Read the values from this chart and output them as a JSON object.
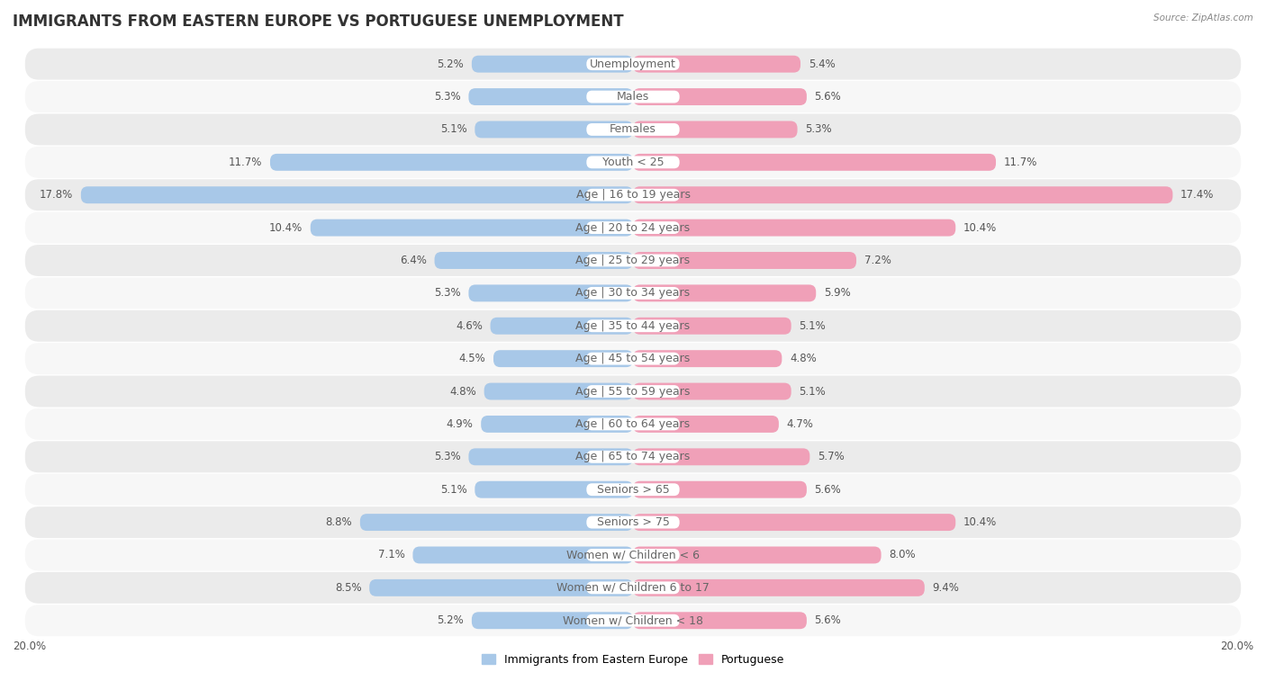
{
  "title": "IMMIGRANTS FROM EASTERN EUROPE VS PORTUGUESE UNEMPLOYMENT",
  "source": "Source: ZipAtlas.com",
  "categories": [
    "Unemployment",
    "Males",
    "Females",
    "Youth < 25",
    "Age | 16 to 19 years",
    "Age | 20 to 24 years",
    "Age | 25 to 29 years",
    "Age | 30 to 34 years",
    "Age | 35 to 44 years",
    "Age | 45 to 54 years",
    "Age | 55 to 59 years",
    "Age | 60 to 64 years",
    "Age | 65 to 74 years",
    "Seniors > 65",
    "Seniors > 75",
    "Women w/ Children < 6",
    "Women w/ Children 6 to 17",
    "Women w/ Children < 18"
  ],
  "left_values": [
    5.2,
    5.3,
    5.1,
    11.7,
    17.8,
    10.4,
    6.4,
    5.3,
    4.6,
    4.5,
    4.8,
    4.9,
    5.3,
    5.1,
    8.8,
    7.1,
    8.5,
    5.2
  ],
  "right_values": [
    5.4,
    5.6,
    5.3,
    11.7,
    17.4,
    10.4,
    7.2,
    5.9,
    5.1,
    4.8,
    5.1,
    4.7,
    5.7,
    5.6,
    10.4,
    8.0,
    9.4,
    5.6
  ],
  "left_color": "#a8c8e8",
  "right_color": "#f0a0b8",
  "bar_height": 0.52,
  "xlim": 20.0,
  "legend_left": "Immigrants from Eastern Europe",
  "legend_right": "Portuguese",
  "row_color_odd": "#ebebeb",
  "row_color_even": "#f7f7f7",
  "title_fontsize": 12,
  "label_fontsize": 9,
  "value_fontsize": 8.5
}
